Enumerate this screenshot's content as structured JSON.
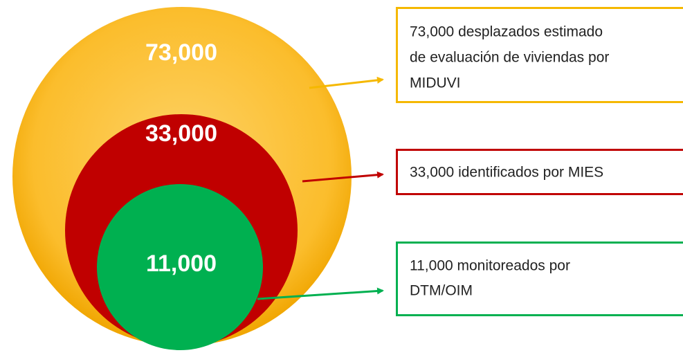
{
  "circles": [
    {
      "label": "73,000",
      "description": [
        "73,000 desplazados estimado",
        "de evaluación de viviendas por",
        "MIDUVI"
      ]
    },
    {
      "label": "33,000",
      "description": [
        "33,000 identificados por MIES"
      ]
    },
    {
      "label": "11,000",
      "description": [
        "11,000 monitoreados por",
        "DTM/OIM"
      ]
    }
  ]
}
